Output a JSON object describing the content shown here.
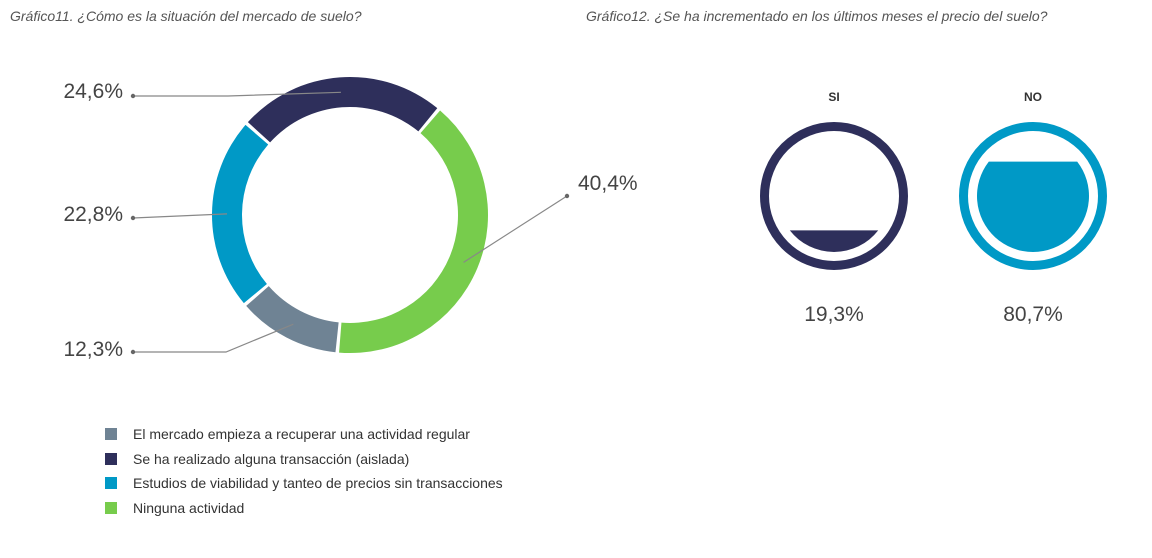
{
  "chart_data": [
    {
      "type": "pie",
      "variant": "donut",
      "title": "Gráfico11. ¿Cómo es la situación del mercado de suelo?",
      "slices": [
        {
          "label": "Ninguna actividad",
          "value": 40.4,
          "display": "40,4%",
          "color": "#77cc4c"
        },
        {
          "label": "El mercado empieza a recuperar una actividad regular",
          "value": 12.3,
          "display": "12,3%",
          "color": "#6f8394"
        },
        {
          "label": "Estudios de viabilidad y tanteo de precios sin transacciones",
          "value": 22.8,
          "display": "22,8%",
          "color": "#0099c6"
        },
        {
          "label": "Se ha realizado alguna transacción (aislada)",
          "value": 24.6,
          "display": "24,6%",
          "color": "#2e2f5b"
        }
      ],
      "legend": [
        {
          "label": "El mercado empieza a recuperar una actividad regular",
          "color": "#6f8394"
        },
        {
          "label": "Se ha realizado alguna transacción (aislada)",
          "color": "#2e2f5b"
        },
        {
          "label": "Estudios de viabilidad y tanteo de precios sin transacciones",
          "color": "#0099c6"
        },
        {
          "label": "Ninguna actividad",
          "color": "#77cc4c"
        }
      ],
      "legend_position": "bottom-left"
    },
    {
      "type": "gauge",
      "variant": "fill-level-circles",
      "title": "Gráfico12. ¿Se ha incrementado en los últimos meses el precio del suelo?",
      "items": [
        {
          "label": "SI",
          "value": 19.3,
          "display": "19,3%",
          "color": "#2e2f5b"
        },
        {
          "label": "NO",
          "value": 80.7,
          "display": "80,7%",
          "color": "#0099c6"
        }
      ]
    }
  ]
}
